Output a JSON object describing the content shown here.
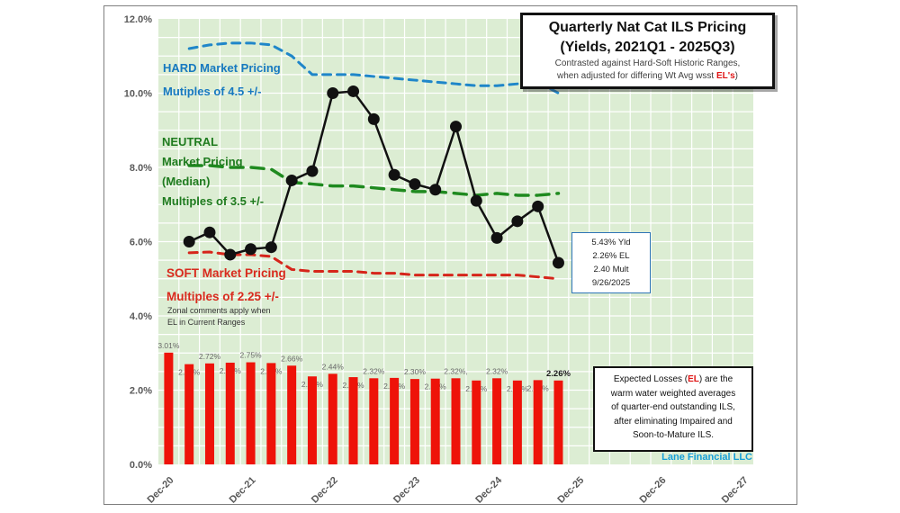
{
  "credit": "Lane Financial LLC",
  "title_box": {
    "line1": "Quarterly Nat Cat ILS Pricing",
    "line2": "(Yields, 2021Q1 - 2025Q3)",
    "sub1": "Contrasted against Hard-Soft Historic Ranges,",
    "sub2_prefix": "when adjusted for differing Wt Avg wsst ",
    "sub2_el": "EL's",
    "sub2_suffix": ")"
  },
  "annotations": {
    "hard": {
      "line1": "HARD Market Pricing",
      "line2": "Mutiples of 4.5 +/-"
    },
    "neutral": {
      "line1": "NEUTRAL",
      "line2": "Market Pricing",
      "line3": "(Median)",
      "line4": "Multiples of 3.5 +/-"
    },
    "soft": {
      "line1": "SOFT Market Pricing",
      "line2": "Multiples of 2.25 +/-"
    },
    "zonal": {
      "line1": "Zonal comments apply when",
      "line2": "EL in Current Ranges"
    }
  },
  "callout": {
    "yld": "5.43% Yld",
    "el": "2.26% EL",
    "mult": "2.40 Mult",
    "date": "9/26/2025"
  },
  "el_note": {
    "l1_prefix": "Expected Losses (",
    "l1_el": "EL",
    "l1_suffix": ") are the",
    "l2": "warm water weighted averages",
    "l3": "of quarter-end outstanding ILS,",
    "l4": "after eliminating Impaired and",
    "l5": "Soon-to-Mature ILS."
  },
  "chart_data": {
    "type": "bar",
    "subtype": "bar-and-line combo",
    "plot_bg": "#dcedd3",
    "grid_color": "#ffffff",
    "axis_label_color": "#595959",
    "y_axis": {
      "min": 0,
      "max": 12,
      "minor_step": 0.5,
      "ticks": [
        {
          "v": 0,
          "label": "0.0%"
        },
        {
          "v": 2,
          "label": "2.0%"
        },
        {
          "v": 4,
          "label": "4.0%"
        },
        {
          "v": 6,
          "label": "6.0%"
        },
        {
          "v": 8,
          "label": "8.0%"
        },
        {
          "v": 10,
          "label": "10.0%"
        },
        {
          "v": 12,
          "label": "12.0%"
        }
      ]
    },
    "x_axis": {
      "categories": [
        "Dec-20",
        "Mar-21",
        "Jun-21",
        "Sep-21",
        "Dec-21",
        "Mar-22",
        "Jun-22",
        "Sep-22",
        "Dec-22",
        "Mar-23",
        "Jun-23",
        "Sep-23",
        "Dec-23",
        "Mar-24",
        "Jun-24",
        "Sep-24",
        "Dec-24",
        "Mar-25",
        "Jun-25",
        "Sep-25",
        "Dec-25",
        "Mar-26",
        "Jun-26",
        "Sep-26",
        "Dec-26",
        "Mar-27",
        "Jun-27",
        "Sep-27",
        "Dec-27"
      ],
      "tick_indices": [
        0,
        4,
        8,
        12,
        16,
        20,
        24,
        28
      ],
      "tick_labels": [
        "Dec-20",
        "Dec-21",
        "Dec-22",
        "Dec-23",
        "Dec-24",
        "Dec-25",
        "Dec-26",
        "Dec-27"
      ]
    },
    "bars": {
      "name": "Wt Avg EL of outstanding ILS",
      "color": "#ee1309",
      "label_color": "#696969",
      "start_index": 0,
      "values": [
        {
          "v": 3.01,
          "label": "3.01%",
          "pos": "above"
        },
        {
          "v": 2.7,
          "label": "2.70%",
          "pos": "below"
        },
        {
          "v": 2.72,
          "label": "2.72%",
          "pos": "above"
        },
        {
          "v": 2.74,
          "label": "2.74%",
          "pos": "below"
        },
        {
          "v": 2.75,
          "label": "2.75%",
          "pos": "above"
        },
        {
          "v": 2.73,
          "label": "2.73%",
          "pos": "below"
        },
        {
          "v": 2.66,
          "label": "2.66%",
          "pos": "above"
        },
        {
          "v": 2.37,
          "label": "2.37%",
          "pos": "below"
        },
        {
          "v": 2.44,
          "label": "2.44%",
          "pos": "above"
        },
        {
          "v": 2.35,
          "label": "2.35%",
          "pos": "below"
        },
        {
          "v": 2.32,
          "label": "2.32%",
          "pos": "above"
        },
        {
          "v": 2.33,
          "label": "2.33%",
          "pos": "below"
        },
        {
          "v": 2.3,
          "label": "2.30%",
          "pos": "above"
        },
        {
          "v": 2.31,
          "label": "2.31%",
          "pos": "below"
        },
        {
          "v": 2.32,
          "label": "2.32%,",
          "pos": "above"
        },
        {
          "v": 2.26,
          "label": "2.26%",
          "pos": "below"
        },
        {
          "v": 2.32,
          "label": "2.32%",
          "pos": "above"
        },
        {
          "v": 2.26,
          "label": "2.26%",
          "pos": "below"
        },
        {
          "v": 2.27,
          "label": "2.27%",
          "pos": "below"
        },
        {
          "v": 2.26,
          "label": "2.26%",
          "pos": "above",
          "bold": true
        }
      ]
    },
    "lines": [
      {
        "id": "hard-range-line",
        "name": "HARD Market Pricing (Multiples of 4.5 +/-)",
        "color": "#1f86c9",
        "style": "dashed",
        "dash": "9 7",
        "width": 3,
        "marker": false,
        "start_index": 1,
        "values": [
          11.2,
          11.3,
          11.35,
          11.35,
          11.3,
          11.0,
          10.5,
          10.5,
          10.5,
          10.45,
          10.4,
          10.35,
          10.3,
          10.25,
          10.2,
          10.2,
          10.25,
          10.3,
          10.0
        ]
      },
      {
        "id": "neutral-median-line",
        "name": "NEUTRAL Market Pricing Median (Multiples of 3.5 +/-)",
        "color": "#1f8a1f",
        "style": "dashed",
        "dash": "14 9",
        "width": 3.5,
        "marker": false,
        "start_index": 1,
        "values": [
          8.05,
          8.05,
          8.0,
          8.0,
          7.95,
          7.6,
          7.55,
          7.5,
          7.5,
          7.45,
          7.4,
          7.35,
          7.35,
          7.3,
          7.25,
          7.3,
          7.25,
          7.25,
          7.3
        ]
      },
      {
        "id": "soft-range-line",
        "name": "SOFT Market Pricing (Multiples of 2.25 +/-)",
        "color": "#d6251b",
        "style": "dashed",
        "dash": "9 7",
        "width": 3,
        "marker": false,
        "start_index": 1,
        "values": [
          5.7,
          5.72,
          5.65,
          5.65,
          5.6,
          5.25,
          5.2,
          5.2,
          5.2,
          5.15,
          5.15,
          5.1,
          5.1,
          5.1,
          5.1,
          5.1,
          5.1,
          5.05,
          5.0
        ]
      },
      {
        "id": "yield-line",
        "name": "Quarterly Nat Cat ILS Yield",
        "color": "#111111",
        "style": "solid",
        "dash": "",
        "width": 2.5,
        "marker": true,
        "marker_r": 6.5,
        "start_index": 1,
        "values": [
          6.0,
          6.25,
          5.65,
          5.8,
          5.85,
          7.65,
          7.9,
          10.0,
          10.05,
          9.3,
          7.8,
          7.55,
          7.4,
          9.1,
          7.1,
          6.1,
          6.55,
          6.95,
          5.43
        ]
      }
    ]
  }
}
